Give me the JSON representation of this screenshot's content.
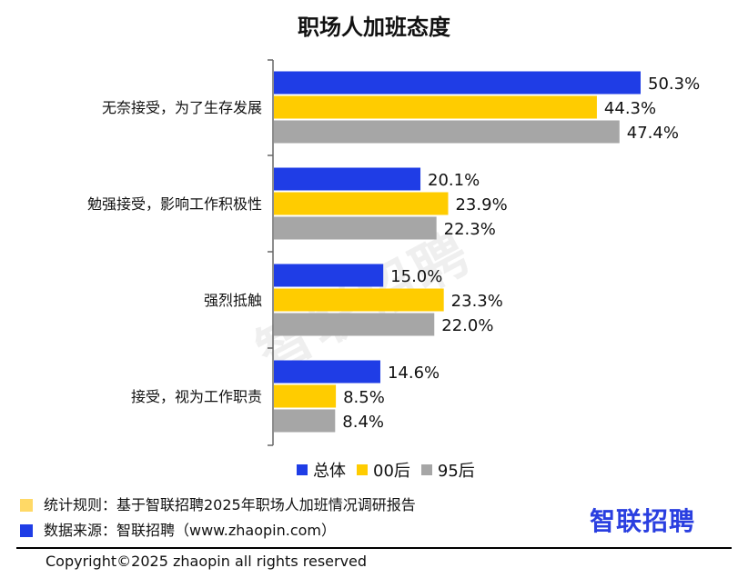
{
  "chart_data": {
    "type": "bar",
    "orientation": "horizontal",
    "title": "职场人加班态度",
    "categories": [
      "无奈接受，为了生存发展",
      "勉强接受，影响工作积极性",
      "强烈抵触",
      "接受，视为工作职责"
    ],
    "series": [
      {
        "name": "总体",
        "color": "#1f3de6",
        "values": [
          50.3,
          20.1,
          15.0,
          14.6
        ]
      },
      {
        "name": "00后",
        "color": "#ffcc00",
        "values": [
          44.3,
          23.9,
          23.3,
          8.5
        ]
      },
      {
        "name": "95后",
        "color": "#a6a6a6",
        "values": [
          47.4,
          22.3,
          22.0,
          8.4
        ]
      }
    ],
    "value_suffix": "%",
    "xlim": [
      0,
      60
    ],
    "grid": false,
    "legend_position": "bottom"
  },
  "notes": {
    "rule": "统计规则：基于智联招聘2025年职场人加班情况调研报告",
    "source": "数据来源：智联招聘（www.zhaopin.com）",
    "rule_color": "#ffd966",
    "source_color": "#1f3de6"
  },
  "brand": {
    "logo_text": "智联招聘",
    "watermark_text": "智联招聘"
  },
  "footer": {
    "copyright": "Copyright©2025 zhaopin all rights reserved"
  }
}
